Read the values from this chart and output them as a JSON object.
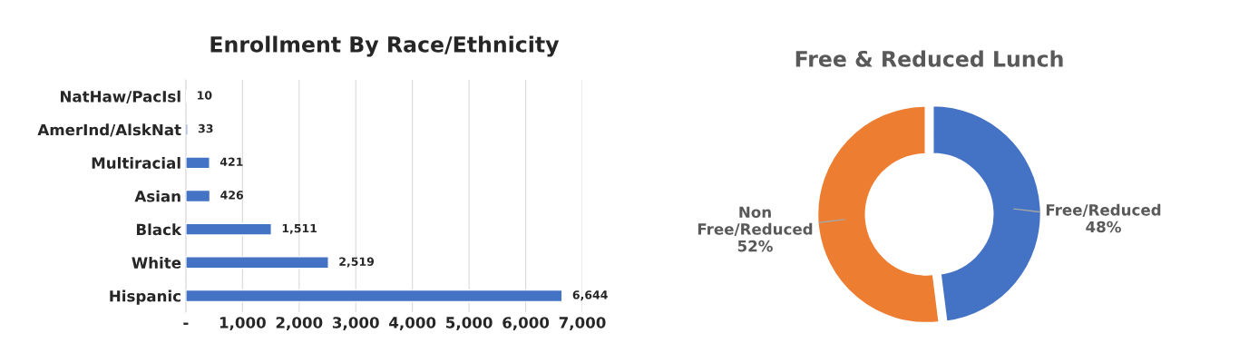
{
  "chart_data": [
    {
      "type": "bar",
      "title": "Enrollment By Race/Ethnicity",
      "orientation": "horizontal",
      "categories": [
        "NatHaw/PacIsl",
        "AmerInd/AlskNat",
        "Multiracial",
        "Asian",
        "Black",
        "White",
        "Hispanic"
      ],
      "values": [
        10,
        33,
        421,
        426,
        1511,
        2519,
        6644
      ],
      "color": "#4472c4",
      "value_labels": [
        "10",
        "33",
        "421",
        "426",
        "1,511",
        "2,519",
        "6,644"
      ],
      "xlim": [
        0,
        7000
      ],
      "xticks": [
        {
          "value": 0,
          "label": "-"
        },
        {
          "value": 1000,
          "label": "1,000"
        },
        {
          "value": 2000,
          "label": "2,000"
        },
        {
          "value": 3000,
          "label": "3,000"
        },
        {
          "value": 4000,
          "label": "4,000"
        },
        {
          "value": 5000,
          "label": "5,000"
        },
        {
          "value": 6000,
          "label": "6,000"
        },
        {
          "value": 7000,
          "label": "7,000"
        }
      ],
      "grid": "x",
      "legend": false
    },
    {
      "type": "donut",
      "title": "Free & Reduced Lunch",
      "categories": [
        "Free/Reduced",
        "Non Free/Reduced"
      ],
      "values": [
        48,
        52
      ],
      "colors": [
        "#4472c4",
        "#ed7d31"
      ],
      "value_labels": [
        "48%",
        "52%"
      ],
      "legend": false
    }
  ]
}
